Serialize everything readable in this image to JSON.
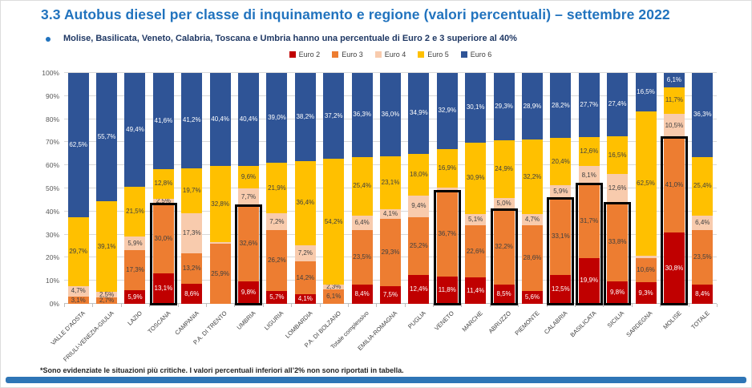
{
  "slide": {
    "title": "3.3 Autobus diesel per classe di inquinamento e regione (valori percentuali) – settembre 2022",
    "bullet": "Molise, Basilicata, Veneto, Calabria, Toscana e Umbria hanno una percentuale di Euro 2 e 3 superiore al 40%",
    "footnote": "*Sono evidenziate le situazioni più critiche. I valori percentuali inferiori all’2% non sono riportati in tabella.",
    "title_color": "#2173be",
    "accent_bar_color": "#2e75b6"
  },
  "chart_data": {
    "type": "bar",
    "stacked": true,
    "unit": "%",
    "ylim": [
      0,
      100
    ],
    "grid": true,
    "legend_position": "top",
    "label_min": 2,
    "label_rule": "percentages below 2% are not shown",
    "y_ticks": [
      "0%",
      "10%",
      "20%",
      "30%",
      "40%",
      "50%",
      "60%",
      "70%",
      "80%",
      "90%",
      "100%"
    ],
    "categories": [
      "VALLE D'AOSTA",
      "FRIULI-VENEZIA-GIULIA",
      "LAZIO",
      "TOSCANA",
      "CAMPANIA",
      "P.A. DI TRENTO",
      "UMBRIA",
      "LIGURIA",
      "LOMBARDIA",
      "P.A. DI BOLZANO",
      "Totale complessivo",
      "EMILIA-ROMAGNA",
      "PUGLIA",
      "VENETO",
      "MARCHE",
      "ABRUZZO",
      "PIEMONTE",
      "CALABRIA",
      "BASILICATA",
      "SICILIA",
      "SARDEGNA",
      "MOLISE",
      "TOTALE"
    ],
    "series": [
      {
        "name": "Euro 2",
        "color": "#c00000",
        "label_color": "#ffffff",
        "values": [
          0,
          0,
          5.9,
          13.1,
          8.6,
          0,
          9.8,
          5.7,
          4.1,
          0,
          8.4,
          7.5,
          12.4,
          11.8,
          11.4,
          8.5,
          5.6,
          12.5,
          19.9,
          9.8,
          9.3,
          30.8,
          8.4
        ]
      },
      {
        "name": "Euro 3",
        "color": "#ed7d31",
        "label_color": "#404040",
        "values": [
          3.1,
          2.7,
          17.3,
          30.0,
          13.2,
          25.9,
          32.6,
          26.2,
          14.2,
          6.1,
          23.5,
          29.3,
          25.2,
          36.7,
          22.6,
          32.2,
          28.6,
          33.1,
          31.7,
          33.8,
          10.6,
          41.0,
          23.5
        ]
      },
      {
        "name": "Euro 4",
        "color": "#f8cbad",
        "label_color": "#404040",
        "values": [
          4.7,
          2.5,
          5.9,
          2.5,
          17.3,
          0.9,
          7.7,
          7.2,
          7.2,
          2.3,
          6.4,
          4.1,
          9.4,
          1.7,
          5.1,
          5.0,
          4.7,
          5.9,
          8.1,
          12.6,
          1.1,
          10.5,
          6.4
        ]
      },
      {
        "name": "Euro 5",
        "color": "#ffc000",
        "label_color": "#404040",
        "values": [
          29.7,
          39.1,
          21.5,
          12.8,
          19.7,
          32.8,
          9.6,
          21.9,
          36.4,
          54.2,
          25.4,
          23.1,
          18.0,
          16.9,
          30.9,
          24.9,
          32.2,
          20.4,
          12.6,
          16.5,
          62.5,
          11.7,
          25.4
        ]
      },
      {
        "name": "Euro 6",
        "color": "#2f5496",
        "label_color": "#ffffff",
        "values": [
          62.5,
          55.7,
          49.4,
          41.6,
          41.2,
          40.4,
          40.4,
          39.0,
          38.2,
          37.2,
          36.3,
          36.0,
          34.9,
          32.9,
          30.1,
          29.3,
          28.9,
          28.2,
          27.7,
          27.4,
          16.5,
          6.1,
          36.3
        ]
      }
    ],
    "highlighted_categories": [
      "TOSCANA",
      "UMBRIA",
      "VENETO",
      "ABRUZZO",
      "CALABRIA",
      "BASILICATA",
      "SICILIA",
      "MOLISE"
    ],
    "highlight_meaning": "black box around Euro 2 + Euro 3 share"
  }
}
